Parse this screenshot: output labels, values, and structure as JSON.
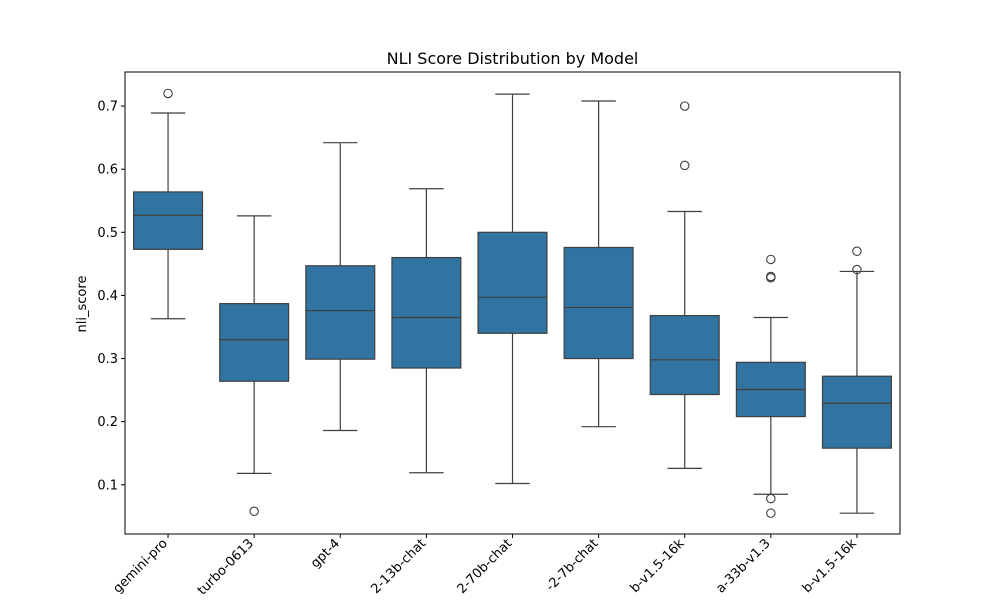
{
  "chart_data": {
    "type": "box",
    "title": "NLI Score Distribution by Model",
    "xlabel": "",
    "ylabel": "nli_score",
    "ylim": [
      0.022,
      0.754
    ],
    "yticks": [
      0.1,
      0.2,
      0.3,
      0.4,
      0.5,
      0.6,
      0.7
    ],
    "ytick_labels": [
      "0.1",
      "0.2",
      "0.3",
      "0.4",
      "0.5",
      "0.6",
      "0.7"
    ],
    "color": "#3274a1",
    "categories": [
      "gemini-pro",
      "turbo-0613",
      "gpt-4",
      "2-13b-chat",
      "2-70b-chat",
      "-2-7b-chat",
      "b-v1.5-16k",
      "a-33b-v1.3",
      "b-v1.5-16k"
    ],
    "boxes": [
      {
        "whisker_low": 0.363,
        "q1": 0.473,
        "median": 0.527,
        "q3": 0.564,
        "whisker_high": 0.689,
        "outliers": [
          0.72
        ]
      },
      {
        "whisker_low": 0.118,
        "q1": 0.264,
        "median": 0.33,
        "q3": 0.387,
        "whisker_high": 0.526,
        "outliers": [
          0.058
        ]
      },
      {
        "whisker_low": 0.186,
        "q1": 0.299,
        "median": 0.376,
        "q3": 0.447,
        "whisker_high": 0.642,
        "outliers": []
      },
      {
        "whisker_low": 0.119,
        "q1": 0.285,
        "median": 0.365,
        "q3": 0.46,
        "whisker_high": 0.569,
        "outliers": []
      },
      {
        "whisker_low": 0.102,
        "q1": 0.34,
        "median": 0.397,
        "q3": 0.5,
        "whisker_high": 0.719,
        "outliers": []
      },
      {
        "whisker_low": 0.192,
        "q1": 0.3,
        "median": 0.381,
        "q3": 0.476,
        "whisker_high": 0.708,
        "outliers": []
      },
      {
        "whisker_low": 0.126,
        "q1": 0.243,
        "median": 0.298,
        "q3": 0.368,
        "whisker_high": 0.533,
        "outliers": [
          0.606,
          0.7
        ]
      },
      {
        "whisker_low": 0.085,
        "q1": 0.208,
        "median": 0.251,
        "q3": 0.294,
        "whisker_high": 0.365,
        "outliers": [
          0.078,
          0.055,
          0.428,
          0.43,
          0.457
        ]
      },
      {
        "whisker_low": 0.055,
        "q1": 0.158,
        "median": 0.229,
        "q3": 0.272,
        "whisker_high": 0.438,
        "outliers": [
          0.441,
          0.47
        ]
      }
    ]
  }
}
